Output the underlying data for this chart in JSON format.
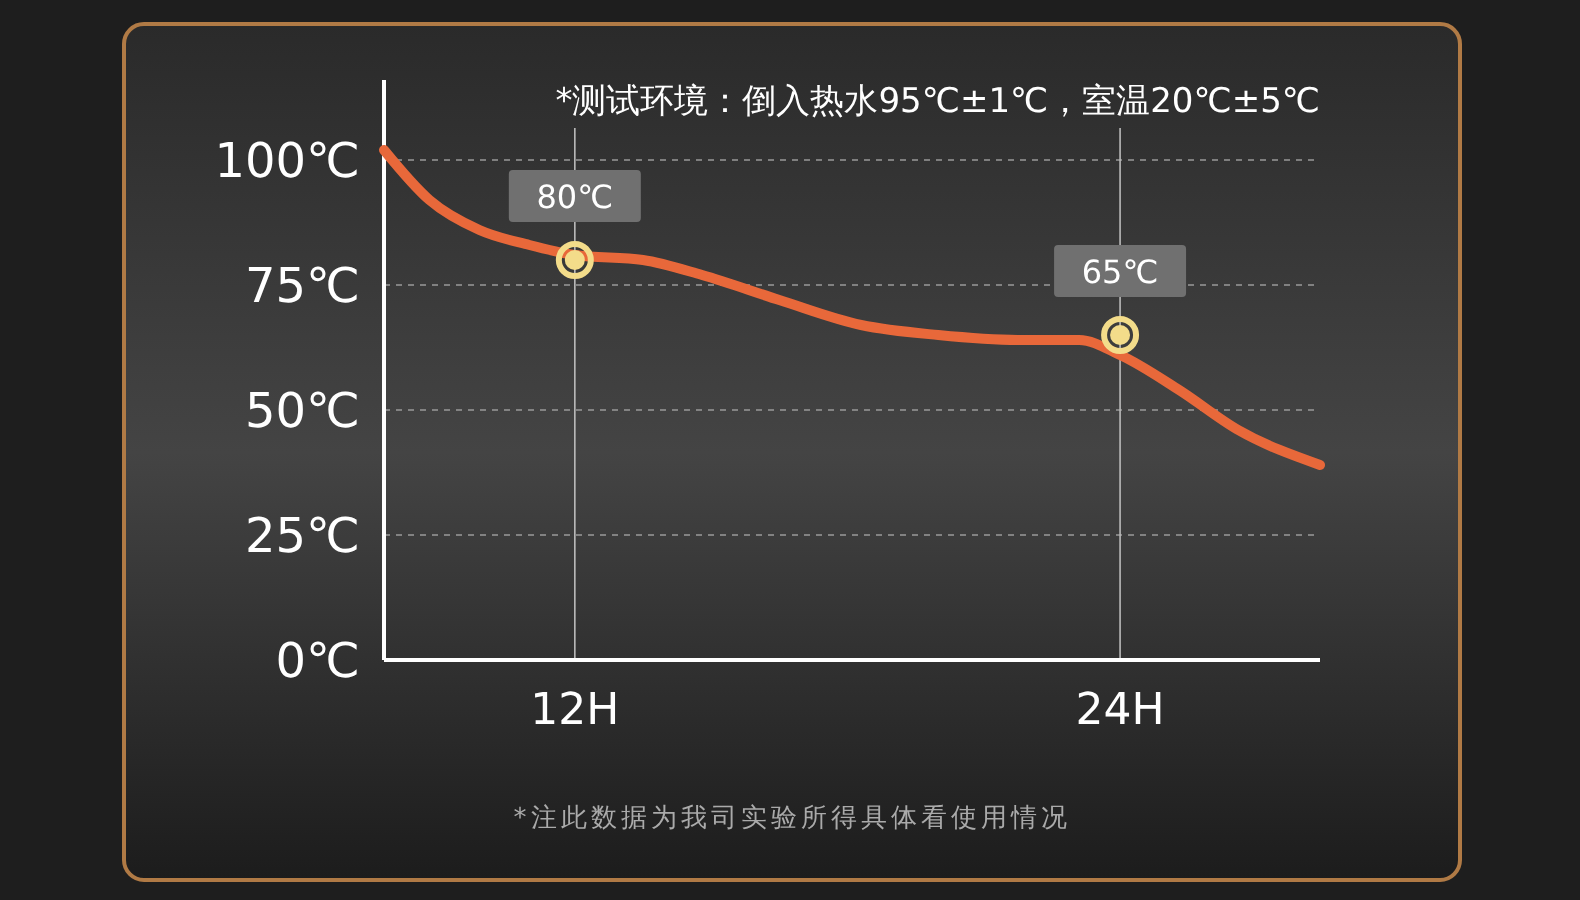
{
  "chart_data": {
    "type": "line",
    "x": [
      7.8,
      8.8,
      9.9,
      11.0,
      12,
      13.5,
      14.8,
      16.5,
      18.3,
      20.0,
      21.8,
      23.1,
      24,
      25.3,
      26.6,
      28.4
    ],
    "series": [
      {
        "color": "#e8683a",
        "values": [
          102,
          92,
          86,
          83,
          81,
          80,
          77,
          72,
          67,
          65,
          64,
          64,
          61,
          54,
          46,
          39
        ]
      },
      {
        "type": "scatter",
        "x": [
          12,
          24
        ],
        "color": "#f3dc8a",
        "values": [
          80,
          65
        ],
        "value_labels": [
          "80℃",
          "65℃"
        ],
        "marker": "circle"
      }
    ],
    "xlim": [
      7.8,
      28.4
    ],
    "xticks": [
      {
        "value": 12,
        "label": "12H"
      },
      {
        "value": 24,
        "label": "24H"
      }
    ],
    "ylim": [
      0,
      116
    ],
    "yticks": [
      {
        "value": 0,
        "label": "0℃"
      },
      {
        "value": 25,
        "label": "25℃"
      },
      {
        "value": 50,
        "label": "50℃"
      },
      {
        "value": 75,
        "label": "75℃"
      },
      {
        "value": 100,
        "label": "100℃"
      }
    ],
    "grid": true,
    "line_style": "solid",
    "annotations": [
      "*测试环境：倒入热水95℃±1℃，室温20℃±5℃",
      "*注此数据为我司实验所得具体看使用情况"
    ]
  }
}
